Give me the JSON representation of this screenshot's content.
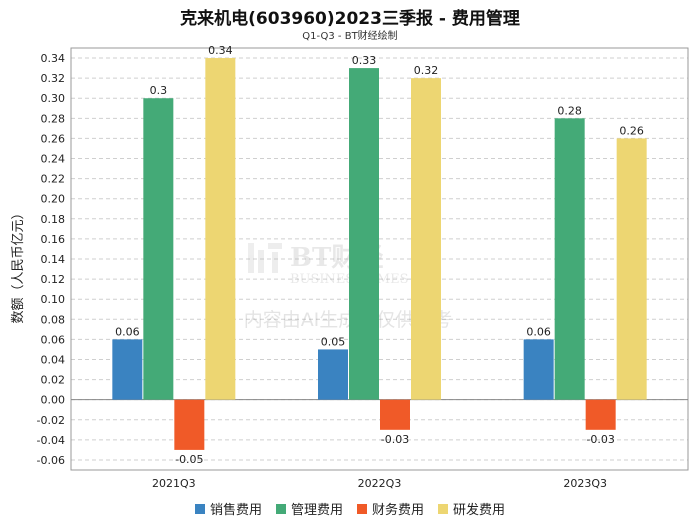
{
  "title": "克来机电(603960)2023三季报 - 费用管理",
  "subtitle": "Q1-Q3 - BT财经绘制",
  "watermark": {
    "brand": "BT财经",
    "brand_en": "BUSINESSTIMES",
    "notice": "内容由AI生成，仅供参考"
  },
  "chart_data": {
    "type": "bar",
    "title": "克来机电(603960)2023三季报 - 费用管理",
    "xlabel": "",
    "ylabel": "数额（人民币亿元）",
    "ylim": [
      -0.07,
      0.35
    ],
    "yticks": [
      -0.06,
      -0.04,
      -0.02,
      0.0,
      0.02,
      0.04,
      0.06,
      0.08,
      0.1,
      0.12,
      0.14,
      0.16,
      0.18,
      0.2,
      0.22,
      0.24,
      0.26,
      0.28,
      0.3,
      0.32,
      0.34
    ],
    "ytick_labels": [
      "-0.06",
      "-0.04",
      "-0.02",
      "0.00",
      "0.02",
      "0.04",
      "0.06",
      "0.08",
      "0.10",
      "0.12",
      "0.14",
      "0.16",
      "0.18",
      "0.20",
      "0.22",
      "0.24",
      "0.26",
      "0.28",
      "0.30",
      "0.32",
      "0.34"
    ],
    "categories": [
      "2021Q3",
      "2022Q3",
      "2023Q3"
    ],
    "series": [
      {
        "name": "销售费用",
        "color": "#3a83c1",
        "values": [
          0.06,
          0.05,
          0.06
        ],
        "labels": [
          "0.06",
          "0.05",
          "0.06"
        ]
      },
      {
        "name": "管理费用",
        "color": "#44aa77",
        "values": [
          0.3,
          0.33,
          0.28
        ],
        "labels": [
          "0.3",
          "0.33",
          "0.28"
        ]
      },
      {
        "name": "财务费用",
        "color": "#f05a28",
        "values": [
          -0.05,
          -0.03,
          -0.03
        ],
        "labels": [
          "-0.05",
          "-0.03",
          "-0.03"
        ]
      },
      {
        "name": "研发费用",
        "color": "#edd672",
        "values": [
          0.34,
          0.32,
          0.26
        ],
        "labels": [
          "0.34",
          "0.32",
          "0.26"
        ]
      }
    ],
    "grid": true,
    "legend_position": "bottom"
  }
}
